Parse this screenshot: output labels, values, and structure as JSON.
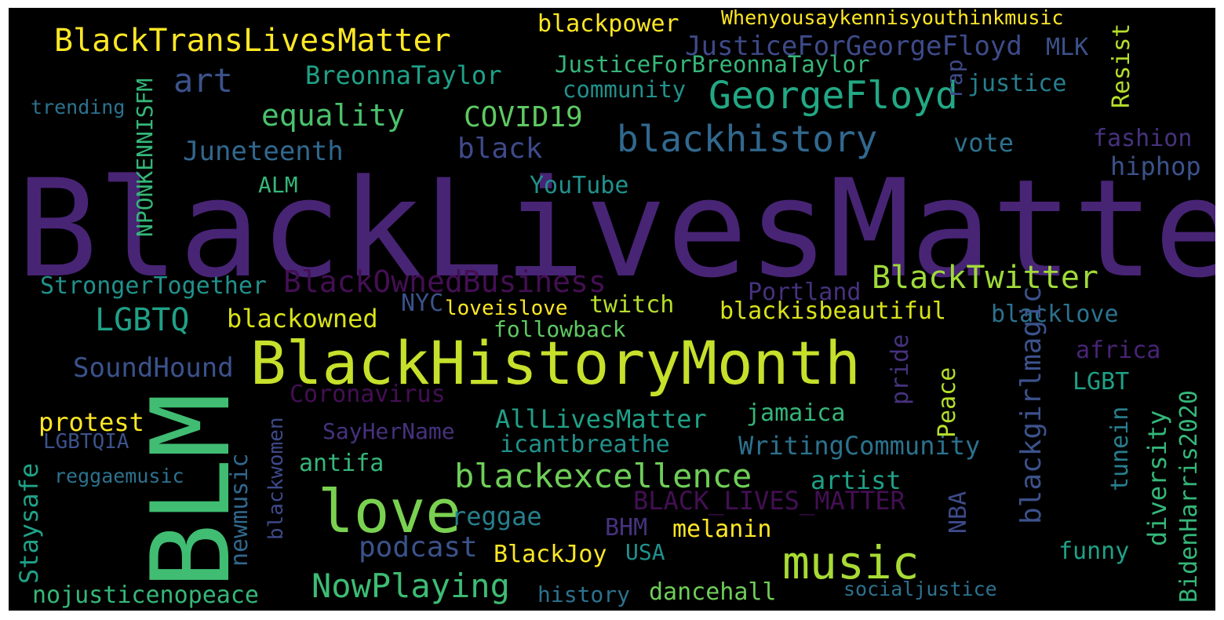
{
  "words": {
    "blacklivesmatter": "BlackLivesMatter",
    "blm": "BLM",
    "blackhistorymonth": "BlackHistoryMonth",
    "love": "love",
    "music": "music",
    "georgefloyd": "GeorgeFloyd",
    "blacktranslivesmatter": "BlackTransLivesMatter",
    "blackhistory": "blackhistory",
    "blackexcellence": "blackexcellence",
    "nowplaying": "NowPlaying",
    "blackownedbusiness": "BlackOwnedBusiness",
    "blacktwitter": "BlackTwitter",
    "art": "art",
    "equality": "equality",
    "covid19": "COVID19",
    "justiceforgeorgefloyd": "JusticeForGeorgeFloyd",
    "mlk": "MLK",
    "blackpower": "blackpower",
    "whenyousay": "Whenyousaykennisyouthinkmusic",
    "resist": "Resist",
    "justiceforbreonnataylor": "JusticeForBreonnaTaylor",
    "breonnataylor": "BreonnaTaylor",
    "rap": "rap",
    "justice": "justice",
    "community": "community",
    "trending": "trending",
    "nponkennisfm": "NPONKENNISFM",
    "juneteenth": "Juneteenth",
    "black": "black",
    "vote": "vote",
    "fashion": "fashion",
    "hiphop": "hiphop",
    "alm": "ALM",
    "youtube": "YouTube",
    "strongertogether": "StrongerTogether",
    "lgbtq": "LGBTQ",
    "nyc": "NYC",
    "loveislove": "loveislove",
    "twitch": "twitch",
    "portland": "Portland",
    "blackowned": "blackowned",
    "followback": "followback",
    "blackisbeautiful": "blackisbeautiful",
    "blacklove": "blacklove",
    "soundhound": "SoundHound",
    "blackgirlmagic": "blackgirlmagic",
    "africa": "africa",
    "pride": "pride",
    "coronavirus": "Coronavirus",
    "lgbt": "LGBT",
    "peace": "Peace",
    "protest": "protest",
    "alllivesmatter": "AllLivesMatter",
    "jamaica": "jamaica",
    "bidenharris2020": "BidenHarris2020",
    "sayhername": "SayHerName",
    "lgbtqia": "LGBTQIA",
    "icantbreathe": "icantbreathe",
    "writingcommunity": "WritingCommunity",
    "diversity": "diversity",
    "tunein": "tunein",
    "staysafe": "Staysafe",
    "antifa": "antifa",
    "reggaemusic": "reggaemusic",
    "artist": "artist",
    "black_lives_matter": "BLACK_LIVES_MATTER",
    "blackwomen": "blackwomen",
    "newmusic": "newmusic",
    "reggae": "reggae",
    "nba": "NBA",
    "bhm": "BHM",
    "melanin": "melanin",
    "podcast": "podcast",
    "blackjoy": "BlackJoy",
    "usa": "USA",
    "funny": "funny",
    "nojusticenopeace": "nojusticenopeace",
    "history": "history",
    "dancehall": "dancehall",
    "socialjustice": "socialjustice"
  },
  "colors": {
    "dark_purple": "#482475",
    "deep_purple": "#440f54",
    "purple": "#46327e",
    "indigo": "#3e4a89",
    "blue": "#3b528b",
    "slate": "#31688e",
    "teal_blue": "#2c728e",
    "teal": "#21918c",
    "green_teal": "#1fa187",
    "green": "#35b779",
    "light_green": "#6ece58",
    "lime": "#b5de2b",
    "yellow": "#fde725"
  }
}
